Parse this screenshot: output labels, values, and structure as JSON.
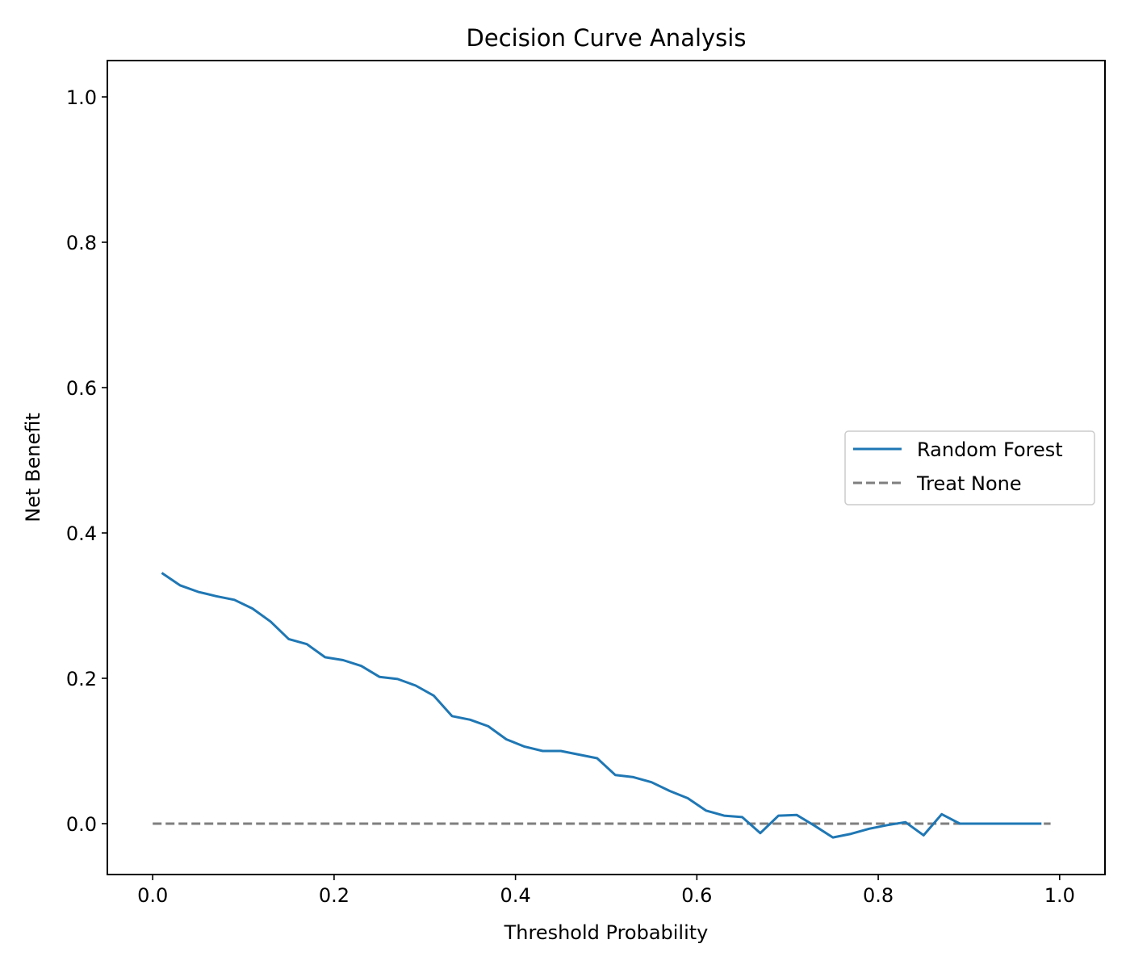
{
  "chart_data": {
    "type": "line",
    "title": "Decision Curve Analysis",
    "xlabel": "Threshold Probability",
    "ylabel": "Net Benefit",
    "xlim": [
      -0.05,
      1.05
    ],
    "ylim": [
      -0.07,
      1.05
    ],
    "xticks": [
      0.0,
      0.2,
      0.4,
      0.6,
      0.8,
      1.0
    ],
    "xtick_labels": [
      "0.0",
      "0.2",
      "0.4",
      "0.6",
      "0.8",
      "1.0"
    ],
    "yticks": [
      0.0,
      0.2,
      0.4,
      0.6,
      0.8,
      1.0
    ],
    "ytick_labels": [
      "0.0",
      "0.2",
      "0.4",
      "0.6",
      "0.8",
      "1.0"
    ],
    "grid": false,
    "legend_position": "center-right",
    "series": [
      {
        "name": "Random Forest",
        "color": "#1f77b4",
        "style": "solid",
        "x": [
          0.01,
          0.03,
          0.05,
          0.07,
          0.09,
          0.11,
          0.13,
          0.15,
          0.17,
          0.19,
          0.21,
          0.23,
          0.25,
          0.27,
          0.29,
          0.31,
          0.33,
          0.35,
          0.37,
          0.39,
          0.41,
          0.43,
          0.45,
          0.47,
          0.49,
          0.51,
          0.53,
          0.55,
          0.57,
          0.59,
          0.61,
          0.63,
          0.65,
          0.67,
          0.69,
          0.71,
          0.73,
          0.75,
          0.77,
          0.79,
          0.81,
          0.83,
          0.85,
          0.87,
          0.89,
          0.91,
          0.93,
          0.95,
          0.97,
          0.98
        ],
        "y": [
          0.345,
          0.328,
          0.319,
          0.313,
          0.308,
          0.296,
          0.278,
          0.254,
          0.247,
          0.229,
          0.225,
          0.217,
          0.202,
          0.199,
          0.19,
          0.176,
          0.148,
          0.143,
          0.134,
          0.116,
          0.106,
          0.1,
          0.1,
          0.095,
          0.09,
          0.067,
          0.064,
          0.057,
          0.045,
          0.035,
          0.018,
          0.011,
          0.009,
          -0.013,
          0.011,
          0.012,
          -0.003,
          -0.019,
          -0.014,
          -0.007,
          -0.002,
          0.002,
          -0.016,
          0.013,
          0.0,
          0.0,
          0.0,
          0.0,
          0.0,
          0.0
        ]
      },
      {
        "name": "Treat None",
        "color": "#7f7f7f",
        "style": "dashed",
        "x": [
          0.0,
          0.99
        ],
        "y": [
          0.0,
          0.0
        ]
      }
    ]
  }
}
